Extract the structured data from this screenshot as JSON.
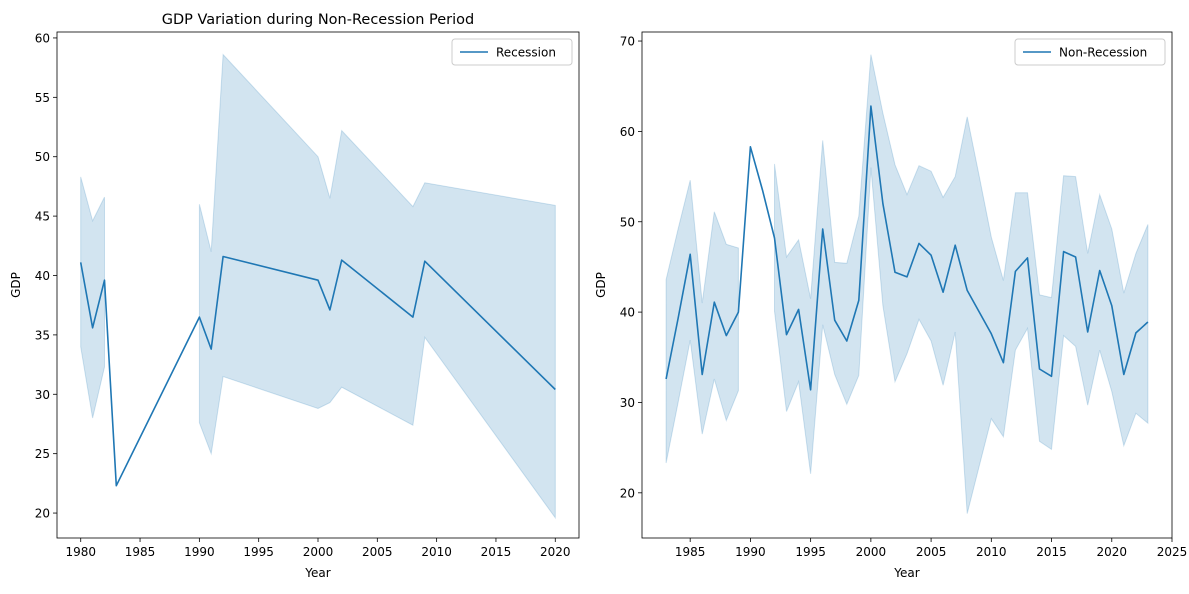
{
  "chart_data": [
    {
      "type": "line",
      "title": "GDP Variation during Non-Recession Period",
      "xlabel": "Year",
      "ylabel": "GDP",
      "xlim": [
        1978.0,
        2022.0
      ],
      "ylim": [
        17.9,
        60.5
      ],
      "xticks": [
        1980,
        1985,
        1990,
        1995,
        2000,
        2005,
        2010,
        2015,
        2020
      ],
      "yticks": [
        20,
        25,
        30,
        35,
        40,
        45,
        50,
        55,
        60
      ],
      "legend": {
        "position": "upper right",
        "entries": [
          "Recession"
        ]
      },
      "grid": false,
      "series": [
        {
          "name": "Recession",
          "color": "#1f77b4",
          "band_color": "#1f77b4",
          "x": [
            1980,
            1981,
            1982,
            1983,
            1990,
            1991,
            1992,
            2000,
            2001,
            2002,
            2008,
            2009,
            2020
          ],
          "y": [
            41.1,
            35.6,
            39.6,
            22.3,
            36.5,
            33.8,
            41.6,
            39.6,
            37.1,
            41.3,
            36.5,
            41.2,
            30.4
          ],
          "lower": [
            34.0,
            28.0,
            32.3,
            null,
            27.6,
            25.0,
            31.5,
            28.8,
            29.3,
            30.6,
            27.4,
            34.8,
            19.6
          ],
          "upper": [
            48.3,
            44.6,
            46.6,
            null,
            46.0,
            42.0,
            58.6,
            50.0,
            46.5,
            52.2,
            45.8,
            47.8,
            45.9
          ]
        }
      ]
    },
    {
      "type": "line",
      "title": "",
      "xlabel": "Year",
      "ylabel": "GDP",
      "xlim": [
        1981.0,
        2025.0
      ],
      "ylim": [
        15.0,
        71.0
      ],
      "xticks": [
        1985,
        1990,
        1995,
        2000,
        2005,
        2010,
        2015,
        2020,
        2025
      ],
      "yticks": [
        20,
        30,
        40,
        50,
        60,
        70
      ],
      "legend": {
        "position": "upper right",
        "entries": [
          "Non-Recession"
        ]
      },
      "grid": false,
      "series": [
        {
          "name": "Non-Recession",
          "color": "#1f77b4",
          "band_color": "#1f77b4",
          "x": [
            1983,
            1984,
            1985,
            1986,
            1987,
            1988,
            1989,
            1990,
            1991,
            1992,
            1993,
            1994,
            1995,
            1996,
            1997,
            1998,
            1999,
            2000,
            2001,
            2002,
            2003,
            2004,
            2005,
            2006,
            2007,
            2008,
            2009,
            2010,
            2011,
            2012,
            2013,
            2014,
            2015,
            2016,
            2017,
            2018,
            2019,
            2020,
            2021,
            2022,
            2023
          ],
          "y": [
            32.6,
            39.3,
            46.4,
            33.1,
            41.1,
            37.4,
            40.0,
            58.3,
            53.5,
            48.2,
            37.5,
            40.3,
            31.4,
            49.2,
            39.1,
            36.8,
            41.3,
            62.8,
            52.0,
            44.4,
            43.9,
            47.6,
            46.3,
            42.2,
            47.4,
            42.4,
            40.0,
            37.6,
            34.4,
            44.5,
            46.0,
            33.7,
            32.9,
            46.7,
            46.1,
            37.8,
            44.6,
            40.7,
            33.1,
            37.7,
            38.9
          ],
          "lower": [
            23.3,
            30.0,
            36.9,
            26.5,
            32.6,
            28.0,
            31.3,
            null,
            null,
            40.1,
            29.0,
            32.3,
            22.1,
            38.6,
            33.1,
            29.8,
            33.0,
            56.0,
            40.7,
            32.3,
            35.4,
            39.2,
            36.8,
            31.9,
            37.8,
            17.7,
            23.0,
            28.2,
            26.2,
            35.8,
            38.2,
            25.7,
            24.8,
            37.4,
            36.2,
            29.7,
            35.8,
            31.2,
            25.2,
            28.8,
            27.7
          ],
          "upper": [
            43.6,
            49.2,
            54.6,
            41.0,
            51.1,
            47.5,
            47.1,
            null,
            null,
            56.4,
            46.1,
            48.0,
            41.5,
            59.0,
            45.5,
            45.4,
            50.6,
            68.5,
            62.0,
            56.3,
            53.0,
            56.2,
            55.6,
            52.7,
            55.0,
            61.6,
            55.0,
            48.3,
            43.5,
            53.2,
            53.2,
            41.9,
            41.6,
            55.1,
            55.0,
            46.5,
            53.0,
            49.2,
            42.1,
            46.5,
            49.7
          ]
        }
      ]
    }
  ]
}
